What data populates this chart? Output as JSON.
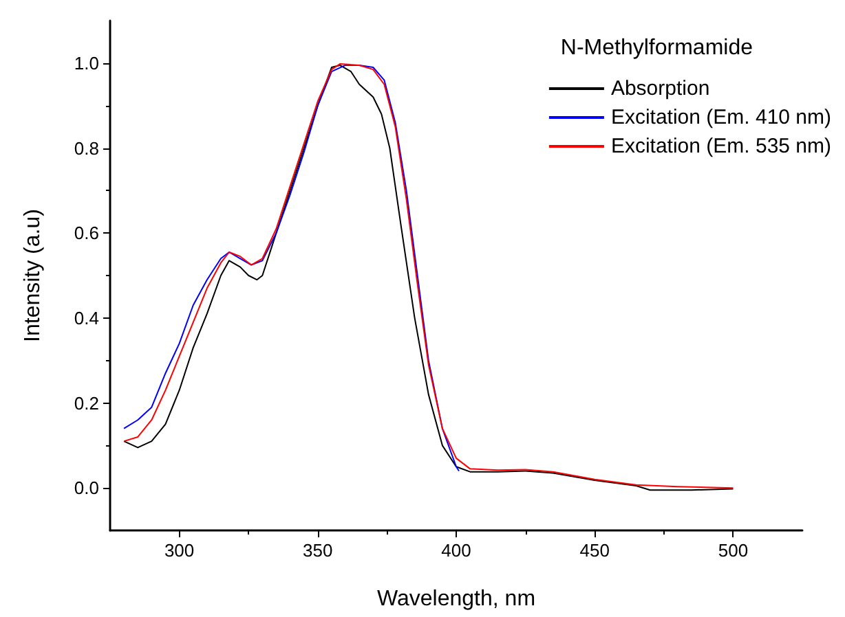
{
  "chart_data": {
    "type": "line",
    "xlabel": "Wavelength, nm",
    "ylabel": "Intensity (a.u)",
    "legend_title": "N-Methylformamide",
    "legend": "top right",
    "grid": false,
    "marker": "none",
    "line_style": "solid",
    "xlim": [
      275,
      525
    ],
    "xticks": [
      300,
      350,
      400,
      450,
      500
    ],
    "ylim": [
      -0.1,
      1.1
    ],
    "yticks": [
      {
        "value": 0,
        "label": "0.0"
      },
      {
        "value": 0.2,
        "label": "0.2"
      },
      {
        "value": 0.4,
        "label": "0.4"
      },
      {
        "value": 0.6,
        "label": "0.6"
      },
      {
        "value": 0.8,
        "label": "0.8"
      },
      {
        "value": 1,
        "label": "1.0"
      }
    ],
    "series": [
      {
        "name": "Absorption",
        "color": "#000000",
        "x": [
          280,
          285,
          290,
          295,
          300,
          305,
          310,
          315,
          318,
          322,
          325,
          328,
          330,
          333,
          340,
          345,
          350,
          355,
          358,
          362,
          365,
          370,
          373,
          376,
          380,
          385,
          390,
          395,
          400,
          405,
          415,
          425,
          435,
          450,
          465,
          470,
          485,
          500
        ],
        "values": [
          0.11,
          0.095,
          0.11,
          0.15,
          0.23,
          0.33,
          0.41,
          0.5,
          0.535,
          0.52,
          0.5,
          0.49,
          0.5,
          0.56,
          0.7,
          0.8,
          0.9,
          0.99,
          0.995,
          0.98,
          0.95,
          0.92,
          0.88,
          0.8,
          0.62,
          0.4,
          0.22,
          0.1,
          0.05,
          0.038,
          0.038,
          0.04,
          0.035,
          0.018,
          0.005,
          -0.005,
          -0.005,
          -0.002
        ]
      },
      {
        "name": "Excitation (Em. 410 nm)",
        "color": "#0000ff",
        "x": [
          280,
          285,
          290,
          295,
          300,
          305,
          310,
          315,
          318,
          322,
          326,
          330,
          335,
          340,
          345,
          350,
          355,
          360,
          365,
          370,
          374,
          378,
          382,
          386,
          390,
          395,
          400,
          401
        ],
        "values": [
          0.14,
          0.16,
          0.19,
          0.27,
          0.34,
          0.43,
          0.49,
          0.54,
          0.555,
          0.54,
          0.525,
          0.535,
          0.6,
          0.69,
          0.79,
          0.9,
          0.98,
          0.995,
          0.995,
          0.99,
          0.96,
          0.86,
          0.7,
          0.5,
          0.3,
          0.14,
          0.05,
          0.04
        ]
      },
      {
        "name": "Excitation (Em. 535 nm)",
        "color": "#ff0000",
        "x": [
          280,
          285,
          290,
          295,
          300,
          305,
          310,
          315,
          318,
          322,
          326,
          330,
          335,
          340,
          345,
          350,
          355,
          358,
          365,
          370,
          374,
          378,
          382,
          386,
          390,
          395,
          400,
          405,
          415,
          425,
          435,
          450,
          465,
          480,
          500
        ],
        "values": [
          0.11,
          0.12,
          0.16,
          0.23,
          0.31,
          0.39,
          0.47,
          0.53,
          0.555,
          0.545,
          0.525,
          0.54,
          0.61,
          0.71,
          0.81,
          0.91,
          0.985,
          0.998,
          0.995,
          0.985,
          0.95,
          0.85,
          0.68,
          0.48,
          0.29,
          0.14,
          0.07,
          0.045,
          0.042,
          0.043,
          0.038,
          0.02,
          0.007,
          0.003,
          0.0
        ]
      }
    ]
  }
}
